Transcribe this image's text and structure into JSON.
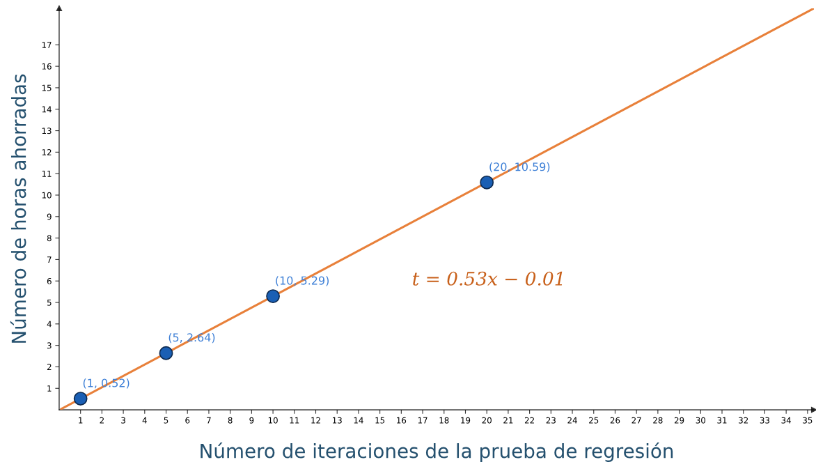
{
  "chart_data": {
    "type": "scatter",
    "xlabel": "Número de iteraciones de la prueba de regresión",
    "ylabel": "Número de horas ahorradas",
    "series": [
      {
        "color": "#1a5fb4",
        "marker": "circle",
        "x": [
          1,
          5,
          10,
          20
        ],
        "values": [
          0.52,
          2.64,
          5.29,
          10.59
        ],
        "value_labels": [
          "(1, 0.52)",
          "(5, 2.64)",
          "(10, 5.29)",
          "(20, 10.59)"
        ]
      },
      {
        "type": "line",
        "color": "#e8803a",
        "x": [
          0.1,
          35.3
        ],
        "values": [
          0.04,
          18.7
        ]
      }
    ],
    "annotations": [
      "t = 0.53x − 0.01"
    ],
    "xlim": [
      0,
      35.3
    ],
    "ylim": [
      0,
      18.7
    ],
    "xticks": [
      1,
      2,
      3,
      4,
      5,
      6,
      7,
      8,
      9,
      10,
      11,
      12,
      13,
      14,
      15,
      16,
      17,
      18,
      19,
      20,
      21,
      22,
      23,
      24,
      25,
      26,
      27,
      28,
      29,
      30,
      31,
      32,
      33,
      34,
      35
    ],
    "yticks": [
      1,
      2,
      3,
      4,
      5,
      6,
      7,
      8,
      9,
      10,
      11,
      12,
      13,
      14,
      15,
      16,
      17
    ],
    "grid": false,
    "line_style": "solid"
  }
}
